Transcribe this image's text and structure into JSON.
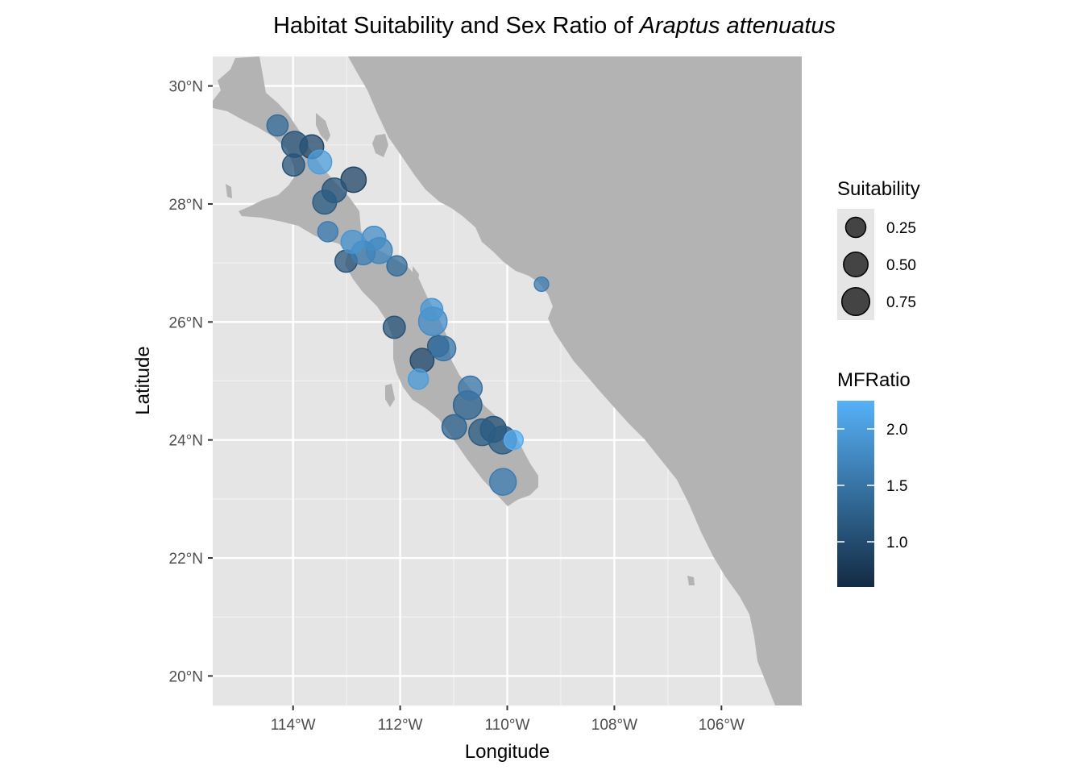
{
  "title": {
    "prefix": "Habitat Suitability and Sex Ratio of ",
    "species": "Araptus attenuatus"
  },
  "axes": {
    "xlabel": "Longitude",
    "ylabel": "Latitude",
    "xlim": [
      -115.5,
      -104.5
    ],
    "ylim": [
      19.5,
      30.5
    ],
    "x_ticks": [
      {
        "value": -114,
        "label": "114°W"
      },
      {
        "value": -112,
        "label": "112°W"
      },
      {
        "value": -110,
        "label": "110°W"
      },
      {
        "value": -108,
        "label": "108°W"
      },
      {
        "value": -106,
        "label": "106°W"
      }
    ],
    "y_ticks": [
      {
        "value": 20,
        "label": "20°N"
      },
      {
        "value": 22,
        "label": "22°N"
      },
      {
        "value": 24,
        "label": "24°N"
      },
      {
        "value": 26,
        "label": "26°N"
      },
      {
        "value": 28,
        "label": "28°N"
      },
      {
        "value": 30,
        "label": "30°N"
      }
    ]
  },
  "colors": {
    "panel": "#e5e5e5",
    "grid": "#ffffff",
    "land": "#b3b3b3",
    "ratio_low": "#132b43",
    "ratio_high": "#56b1f7"
  },
  "legend": {
    "size_title": "Suitability",
    "size_items": [
      {
        "value": 0.25,
        "label": "0.25"
      },
      {
        "value": 0.5,
        "label": "0.50"
      },
      {
        "value": 0.75,
        "label": "0.75"
      }
    ],
    "color_title": "MFRatio",
    "color_range": [
      0.6,
      2.25
    ],
    "color_items": [
      {
        "value": 1.0,
        "label": "1.0"
      },
      {
        "value": 1.5,
        "label": "1.5"
      },
      {
        "value": 2.0,
        "label": "2.0"
      }
    ]
  },
  "chart_data": {
    "type": "scatter",
    "size_var": "Suitability",
    "color_var": "MFRatio",
    "points": [
      {
        "lon": -114.29,
        "lat": 29.33,
        "suitability": 0.3,
        "ratio": 1.4
      },
      {
        "lon": -113.97,
        "lat": 29.01,
        "suitability": 0.6,
        "ratio": 1.1
      },
      {
        "lon": -113.65,
        "lat": 28.97,
        "suitability": 0.45,
        "ratio": 0.95
      },
      {
        "lon": -113.5,
        "lat": 28.71,
        "suitability": 0.45,
        "ratio": 2.0
      },
      {
        "lon": -113.99,
        "lat": 28.66,
        "suitability": 0.35,
        "ratio": 1.1
      },
      {
        "lon": -112.87,
        "lat": 28.41,
        "suitability": 0.55,
        "ratio": 0.9
      },
      {
        "lon": -113.23,
        "lat": 28.23,
        "suitability": 0.5,
        "ratio": 1.1
      },
      {
        "lon": -113.41,
        "lat": 28.03,
        "suitability": 0.45,
        "ratio": 1.2
      },
      {
        "lon": -113.35,
        "lat": 27.53,
        "suitability": 0.25,
        "ratio": 1.6
      },
      {
        "lon": -112.49,
        "lat": 27.42,
        "suitability": 0.45,
        "ratio": 1.8
      },
      {
        "lon": -112.89,
        "lat": 27.36,
        "suitability": 0.4,
        "ratio": 1.9
      },
      {
        "lon": -112.39,
        "lat": 27.21,
        "suitability": 0.6,
        "ratio": 1.7
      },
      {
        "lon": -112.69,
        "lat": 27.17,
        "suitability": 0.45,
        "ratio": 1.6
      },
      {
        "lon": -113.01,
        "lat": 27.03,
        "suitability": 0.35,
        "ratio": 1.1
      },
      {
        "lon": -112.06,
        "lat": 26.95,
        "suitability": 0.25,
        "ratio": 1.4
      },
      {
        "lon": -109.36,
        "lat": 26.64,
        "suitability": 0.05,
        "ratio": 1.6
      },
      {
        "lon": -111.41,
        "lat": 26.21,
        "suitability": 0.35,
        "ratio": 1.9
      },
      {
        "lon": -111.39,
        "lat": 26.01,
        "suitability": 0.8,
        "ratio": 1.8
      },
      {
        "lon": -112.11,
        "lat": 25.91,
        "suitability": 0.35,
        "ratio": 1.1
      },
      {
        "lon": -111.29,
        "lat": 25.59,
        "suitability": 0.3,
        "ratio": 1.2
      },
      {
        "lon": -111.19,
        "lat": 25.55,
        "suitability": 0.5,
        "ratio": 1.5
      },
      {
        "lon": -111.59,
        "lat": 25.35,
        "suitability": 0.45,
        "ratio": 1.0
      },
      {
        "lon": -111.66,
        "lat": 25.03,
        "suitability": 0.25,
        "ratio": 2.0
      },
      {
        "lon": -110.69,
        "lat": 24.88,
        "suitability": 0.45,
        "ratio": 1.5
      },
      {
        "lon": -110.74,
        "lat": 24.59,
        "suitability": 0.8,
        "ratio": 1.3
      },
      {
        "lon": -110.99,
        "lat": 24.22,
        "suitability": 0.5,
        "ratio": 1.3
      },
      {
        "lon": -110.26,
        "lat": 24.18,
        "suitability": 0.6,
        "ratio": 1.1
      },
      {
        "lon": -110.47,
        "lat": 24.13,
        "suitability": 0.65,
        "ratio": 1.2
      },
      {
        "lon": -109.88,
        "lat": 24.0,
        "suitability": 0.2,
        "ratio": 2.2
      },
      {
        "lon": -110.09,
        "lat": 24.0,
        "suitability": 0.75,
        "ratio": 1.2
      },
      {
        "lon": -110.08,
        "lat": 23.29,
        "suitability": 0.65,
        "ratio": 1.6
      }
    ]
  }
}
